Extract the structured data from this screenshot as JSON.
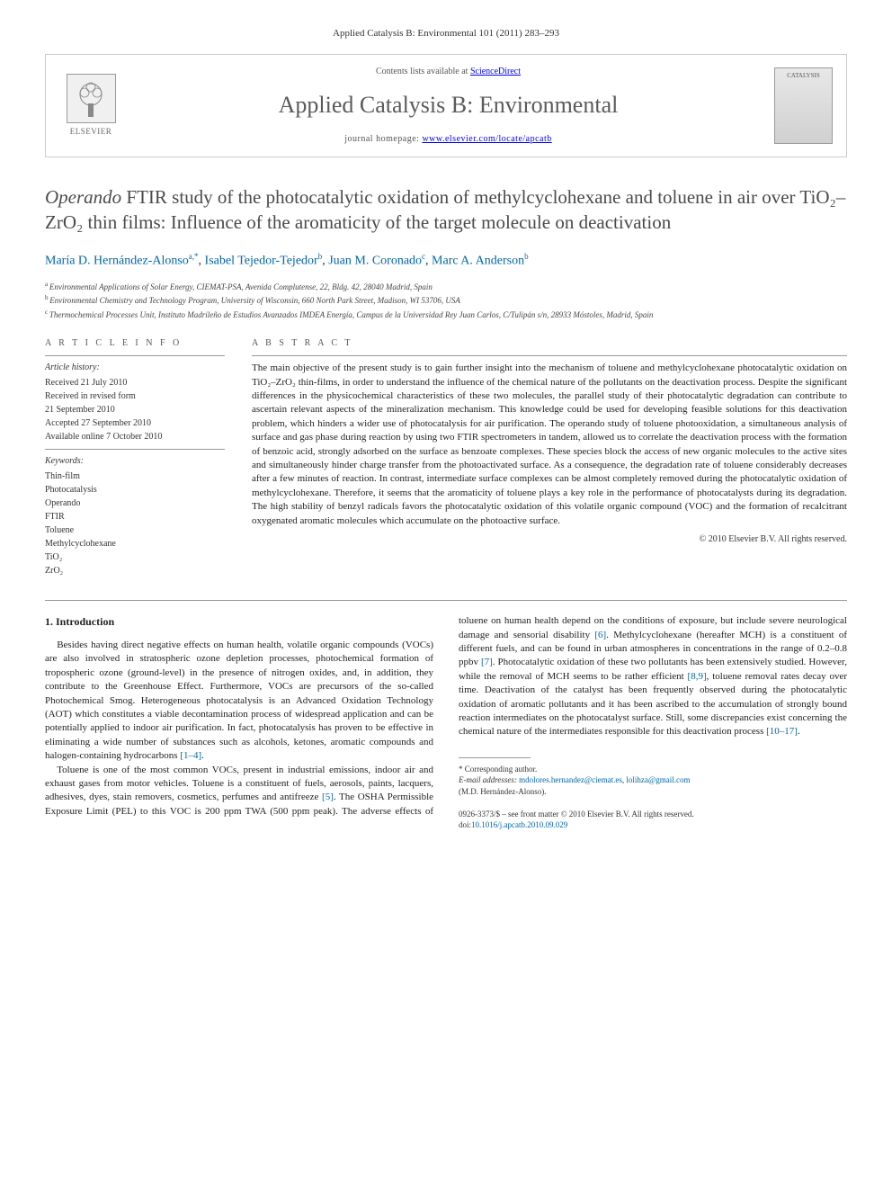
{
  "header": {
    "citation": "Applied Catalysis B: Environmental 101 (2011) 283–293",
    "contents_line_prefix": "Contents lists available at ",
    "contents_link": "ScienceDirect",
    "journal_name": "Applied Catalysis B: Environmental",
    "homepage_prefix": "journal homepage: ",
    "homepage_url": "www.elsevier.com/locate/apcatb",
    "elsevier_label": "ELSEVIER",
    "cover_label": "CATALYSIS"
  },
  "title": {
    "italic_prefix": "Operando",
    "rest": " FTIR study of the photocatalytic oxidation of methylcyclohexane and toluene in air over TiO₂–ZrO₂ thin films: Influence of the aromaticity of the target molecule on deactivation"
  },
  "authors": [
    {
      "name": "María D. Hernández-Alonso",
      "sup": "a,*"
    },
    {
      "name": "Isabel Tejedor-Tejedor",
      "sup": "b"
    },
    {
      "name": "Juan M. Coronado",
      "sup": "c"
    },
    {
      "name": "Marc A. Anderson",
      "sup": "b"
    }
  ],
  "affiliations": [
    {
      "sup": "a",
      "text": "Environmental Applications of Solar Energy, CIEMAT-PSA, Avenida Complutense, 22, Bldg. 42, 28040 Madrid, Spain"
    },
    {
      "sup": "b",
      "text": "Environmental Chemistry and Technology Program, University of Wisconsin, 660 North Park Street, Madison, WI 53706, USA"
    },
    {
      "sup": "c",
      "text": "Thermochemical Processes Unit, Instituto Madrileño de Estudios Avanzados IMDEA Energía, Campus de la Universidad Rey Juan Carlos, C/Tulipán s/n, 28933 Móstoles, Madrid, Spain"
    }
  ],
  "article_info": {
    "heading": "A R T I C L E   I N F O",
    "history_label": "Article history:",
    "history": [
      "Received 21 July 2010",
      "Received in revised form",
      "21 September 2010",
      "Accepted 27 September 2010",
      "Available online 7 October 2010"
    ],
    "keywords_label": "Keywords:",
    "keywords": [
      "Thin-film",
      "Photocatalysis",
      "Operando",
      "FTIR",
      "Toluene",
      "Methylcyclohexane",
      "TiO₂",
      "ZrO₂"
    ]
  },
  "abstract": {
    "heading": "A B S T R A C T",
    "text": "The main objective of the present study is to gain further insight into the mechanism of toluene and methylcyclohexane photocatalytic oxidation on TiO₂–ZrO₂ thin-films, in order to understand the influence of the chemical nature of the pollutants on the deactivation process. Despite the significant differences in the physicochemical characteristics of these two molecules, the parallel study of their photocatalytic degradation can contribute to ascertain relevant aspects of the mineralization mechanism. This knowledge could be used for developing feasible solutions for this deactivation problem, which hinders a wider use of photocatalysis for air purification. The operando study of toluene photooxidation, a simultaneous analysis of surface and gas phase during reaction by using two FTIR spectrometers in tandem, allowed us to correlate the deactivation process with the formation of benzoic acid, strongly adsorbed on the surface as benzoate complexes. These species block the access of new organic molecules to the active sites and simultaneously hinder charge transfer from the photoactivated surface. As a consequence, the degradation rate of toluene considerably decreases after a few minutes of reaction. In contrast, intermediate surface complexes can be almost completely removed during the photocatalytic oxidation of methylcyclohexane. Therefore, it seems that the aromaticity of toluene plays a key role in the performance of photocatalysts during its degradation. The high stability of benzyl radicals favors the photocatalytic oxidation of this volatile organic compound (VOC) and the formation of recalcitrant oxygenated aromatic molecules which accumulate on the photoactive surface.",
    "copyright": "© 2010 Elsevier B.V. All rights reserved."
  },
  "body": {
    "section_number": "1.",
    "section_title": "Introduction",
    "para1_text": "Besides having direct negative effects on human health, volatile organic compounds (VOCs) are also involved in stratospheric ozone depletion processes, photochemical formation of tropospheric ozone (ground-level) in the presence of nitrogen oxides, and, in addition, they contribute to the Greenhouse Effect. Furthermore, VOCs are precursors of the so-called Photochemical Smog. Heterogeneous photocatalysis is an Advanced Oxidation Technology (AOT) which constitutes a viable decontamination process of widespread application and can be potentially applied to indoor air purification. In fact, photocatalysis has proven to be effective in eliminating a wide number of substances such as alcohols, ketones, aromatic compounds and halogen-containing hydrocarbons ",
    "para1_ref": "[1–4]",
    "para1_end": ".",
    "para2_a": "Toluene is one of the most common VOCs, present in industrial emissions, indoor air and exhaust gases from motor vehicles. Toluene is a constituent of fuels, aerosols, paints, lacquers, adhesives, dyes, stain removers, cosmetics, perfumes and antifreeze ",
    "para2_ref1": "[5]",
    "para2_b": ". The OSHA Permissible Exposure Limit (PEL) to this VOC is 200 ppm TWA (500 ppm peak). The adverse effects of toluene on human health depend on the conditions of exposure, but include severe neurological damage and sensorial disability ",
    "para2_ref2": "[6]",
    "para2_c": ". Methylcyclohexane (hereafter MCH) is a constituent of different fuels, and can be found in urban atmospheres in concentrations in the range of 0.2–0.8 ppbv ",
    "para2_ref3": "[7]",
    "para2_d": ". Photocatalytic oxidation of these two pollutants has been extensively studied. However, while the removal of MCH seems to be rather efficient ",
    "para2_ref4": "[8,9]",
    "para2_e": ", toluene removal rates decay over time. Deactivation of the catalyst has been frequently observed during the photocatalytic oxidation of aromatic pollutants and it has been ascribed to the accumulation of strongly bound reaction intermediates on the photocatalyst surface. Still, some discrepancies exist concerning the chemical nature of the intermediates responsible for this deactivation process ",
    "para2_ref5": "[10–17]",
    "para2_f": "."
  },
  "footnotes": {
    "corresponding": "* Corresponding author.",
    "email_label": "E-mail addresses: ",
    "email1": "mdolores.hernandez@ciemat.es",
    "email_sep": ", ",
    "email2": "lolihza@gmail.com",
    "author_paren": "(M.D. Hernández-Alonso)."
  },
  "footer": {
    "issn": "0926-3373/$ – see front matter © 2010 Elsevier B.V. All rights reserved.",
    "doi_label": "doi:",
    "doi": "10.1016/j.apcatb.2010.09.029"
  },
  "colors": {
    "link": "#0066aa",
    "text": "#333333",
    "border": "#cccccc",
    "rule": "#999999"
  }
}
